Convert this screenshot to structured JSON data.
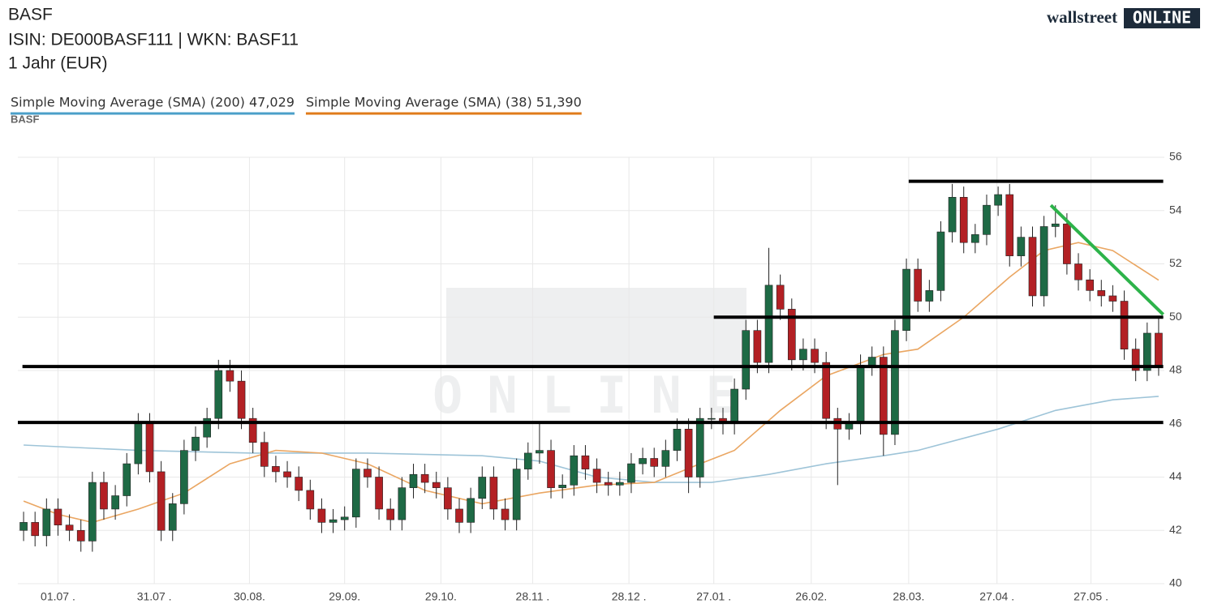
{
  "chart_data": {
    "type": "candlestick",
    "title": "BASF",
    "subtitle": "ISIN: DE000BASF111  | WKN: BASF11",
    "period": "1 Jahr (EUR)",
    "instrument_label": "BASF",
    "logo": {
      "left": "wallstreet",
      "right": "ONLINE"
    },
    "xlim": [
      -0.5,
      99.5
    ],
    "xticks": [
      {
        "value": 3.0,
        "label": "01.07 ."
      },
      {
        "value": 11.4,
        "label": "31.07 ."
      },
      {
        "value": 19.7,
        "label": "30.08."
      },
      {
        "value": 28.0,
        "label": "29.09."
      },
      {
        "value": 36.4,
        "label": "29.10."
      },
      {
        "value": 44.4,
        "label": "28.11 ."
      },
      {
        "value": 52.8,
        "label": "28.12 ."
      },
      {
        "value": 60.2,
        "label": "27.01 ."
      },
      {
        "value": 68.7,
        "label": "26.02."
      },
      {
        "value": 77.2,
        "label": "28.03."
      },
      {
        "value": 84.9,
        "label": "27.04 ."
      },
      {
        "value": 93.1,
        "label": "27.05 ."
      }
    ],
    "ylim": [
      40,
      56
    ],
    "yticks": [
      40,
      42,
      44,
      46,
      48,
      50,
      52,
      54,
      56
    ],
    "grid": true,
    "up_color": "#1e6a45",
    "down_color": "#b32024",
    "open": [
      42.0,
      42.3,
      41.8,
      42.8,
      42.2,
      42.0,
      41.6,
      43.8,
      42.8,
      43.3,
      44.5,
      46.0,
      44.2,
      42.0,
      43.0,
      45.0,
      45.5,
      46.2,
      48.0,
      47.6,
      46.2,
      45.3,
      44.4,
      44.2,
      44.0,
      43.5,
      42.8,
      42.3,
      42.4,
      42.5,
      44.3,
      44.0,
      42.8,
      42.4,
      43.6,
      44.1,
      43.8,
      43.6,
      42.8,
      42.3,
      43.2,
      44.0,
      42.8,
      42.4,
      44.3,
      44.9,
      45.0,
      43.6,
      43.7,
      44.8,
      44.3,
      43.8,
      43.7,
      43.8,
      44.5,
      44.7,
      44.4,
      45.0,
      45.8,
      44.0,
      46.2,
      46.2,
      46.0,
      47.3,
      49.5,
      48.3,
      51.2,
      50.3,
      48.4,
      48.8,
      48.3,
      46.2,
      45.8,
      46.0,
      48.2,
      48.5,
      45.6,
      49.5,
      51.8,
      50.6,
      51.0,
      53.2,
      54.5,
      52.8,
      53.1,
      54.2,
      54.6,
      52.3,
      53.0,
      50.8,
      53.4,
      53.5,
      52.0,
      51.4,
      51.0,
      50.8,
      50.6,
      48.8,
      48.0,
      49.4
    ],
    "high": [
      42.7,
      42.7,
      43.2,
      43.2,
      42.6,
      42.4,
      44.2,
      44.2,
      43.7,
      44.9,
      46.4,
      46.4,
      44.6,
      43.4,
      45.4,
      45.9,
      46.6,
      48.4,
      48.4,
      48.0,
      46.6,
      45.7,
      44.8,
      44.6,
      44.4,
      43.9,
      43.2,
      42.8,
      42.9,
      44.7,
      44.7,
      44.4,
      43.2,
      44.0,
      44.5,
      44.5,
      44.2,
      44.0,
      43.2,
      43.6,
      44.4,
      44.4,
      43.2,
      44.7,
      45.3,
      46.1,
      45.4,
      44.1,
      45.2,
      45.2,
      44.7,
      44.2,
      44.2,
      44.9,
      45.1,
      45.1,
      45.4,
      46.2,
      46.2,
      46.6,
      46.6,
      46.6,
      47.7,
      49.9,
      49.9,
      52.6,
      51.6,
      50.7,
      49.2,
      49.2,
      48.7,
      46.6,
      46.4,
      48.6,
      48.9,
      48.9,
      49.9,
      52.2,
      52.2,
      51.4,
      53.6,
      55.0,
      54.9,
      53.5,
      54.6,
      54.9,
      55.0,
      53.4,
      53.4,
      53.8,
      54.2,
      53.9,
      52.4,
      51.8,
      51.4,
      51.2,
      51.0,
      49.2,
      49.8,
      50.0
    ],
    "low": [
      41.6,
      41.4,
      41.4,
      41.8,
      41.6,
      41.2,
      41.2,
      42.4,
      42.4,
      42.9,
      44.1,
      43.8,
      41.6,
      41.6,
      42.6,
      44.6,
      45.1,
      45.8,
      47.2,
      45.8,
      44.9,
      44.0,
      43.8,
      43.6,
      43.1,
      42.4,
      41.9,
      41.9,
      42.0,
      42.1,
      43.6,
      42.4,
      42.0,
      42.0,
      43.2,
      43.4,
      43.2,
      42.4,
      41.9,
      41.9,
      42.8,
      42.4,
      42.0,
      42.0,
      43.9,
      44.5,
      43.2,
      43.2,
      43.3,
      43.9,
      43.4,
      43.3,
      43.3,
      43.4,
      44.1,
      44.0,
      44.0,
      44.6,
      43.4,
      43.6,
      45.8,
      45.6,
      45.6,
      46.9,
      47.9,
      47.9,
      49.9,
      48.0,
      48.0,
      47.9,
      45.8,
      43.7,
      45.4,
      45.6,
      47.8,
      44.8,
      45.2,
      49.1,
      50.2,
      50.2,
      50.6,
      52.8,
      52.4,
      52.4,
      52.7,
      53.8,
      51.9,
      51.9,
      50.4,
      50.4,
      53.0,
      51.6,
      51.0,
      50.6,
      50.4,
      50.2,
      48.4,
      47.6,
      47.6,
      47.8
    ],
    "close": [
      42.3,
      41.8,
      42.8,
      42.2,
      42.0,
      41.6,
      43.8,
      42.8,
      43.3,
      44.5,
      46.0,
      44.2,
      42.0,
      43.0,
      45.0,
      45.5,
      46.2,
      48.0,
      47.6,
      46.2,
      45.3,
      44.4,
      44.2,
      44.0,
      43.5,
      42.8,
      42.3,
      42.4,
      42.5,
      44.3,
      44.0,
      42.8,
      42.4,
      43.6,
      44.1,
      43.8,
      43.6,
      42.8,
      42.3,
      43.2,
      44.0,
      42.8,
      42.4,
      44.3,
      44.9,
      45.0,
      43.6,
      43.7,
      44.8,
      44.3,
      43.8,
      43.7,
      43.8,
      44.5,
      44.7,
      44.4,
      45.0,
      45.8,
      44.0,
      46.2,
      46.2,
      46.0,
      47.3,
      49.5,
      48.3,
      51.2,
      50.3,
      48.4,
      48.8,
      48.3,
      46.2,
      45.8,
      46.0,
      48.2,
      48.5,
      45.6,
      49.5,
      51.8,
      50.6,
      51.0,
      53.2,
      54.5,
      52.8,
      53.1,
      54.2,
      54.6,
      52.3,
      53.0,
      50.8,
      53.4,
      53.5,
      52.0,
      51.4,
      51.0,
      50.8,
      50.6,
      48.8,
      48.0,
      49.4,
      48.2
    ],
    "series": [
      {
        "name": "Simple Moving Average (SMA) (200) 47,029",
        "color": "#9ec4d8",
        "legend_color": "#4b9fc9",
        "x": [
          0,
          10,
          20,
          30,
          40,
          45,
          50,
          55,
          60,
          65,
          70,
          75,
          78,
          85,
          90,
          95,
          99
        ],
        "values": [
          45.2,
          45.0,
          44.9,
          44.9,
          44.8,
          44.6,
          44.0,
          43.8,
          43.8,
          44.1,
          44.5,
          44.8,
          45.0,
          45.8,
          46.5,
          46.9,
          47.029
        ]
      },
      {
        "name": "Simple Moving Average (SMA) (38) 51,390",
        "color": "#eaa662",
        "legend_color": "#e07b1a",
        "x": [
          0,
          3,
          6,
          10,
          14,
          18,
          22,
          26,
          30,
          35,
          40,
          45,
          50,
          55,
          59,
          62,
          66,
          70,
          75,
          78,
          82,
          86,
          89,
          92,
          95,
          99
        ],
        "values": [
          43.1,
          42.6,
          42.3,
          42.8,
          43.4,
          44.5,
          45.0,
          44.9,
          44.5,
          43.5,
          43.0,
          43.4,
          43.7,
          43.8,
          44.5,
          45.0,
          46.5,
          47.8,
          48.6,
          48.8,
          50.0,
          51.5,
          52.5,
          52.8,
          52.5,
          51.39
        ]
      }
    ],
    "annotations": [
      {
        "color": "#000000",
        "x": [
          77.2,
          99.4
        ],
        "y": [
          55.1,
          55.1
        ]
      },
      {
        "color": "#000000",
        "x": [
          60.2,
          99.4
        ],
        "y": [
          50.0,
          50.0
        ]
      },
      {
        "color": "#000000",
        "x": [
          -0.1,
          99.4
        ],
        "y": [
          48.15,
          48.15
        ]
      },
      {
        "color": "#000000",
        "x": [
          -0.5,
          99.4
        ],
        "y": [
          46.05,
          46.05
        ]
      },
      {
        "color": "#2db34a",
        "x": [
          89.6,
          99.4
        ],
        "y": [
          54.2,
          50.1
        ]
      }
    ]
  }
}
